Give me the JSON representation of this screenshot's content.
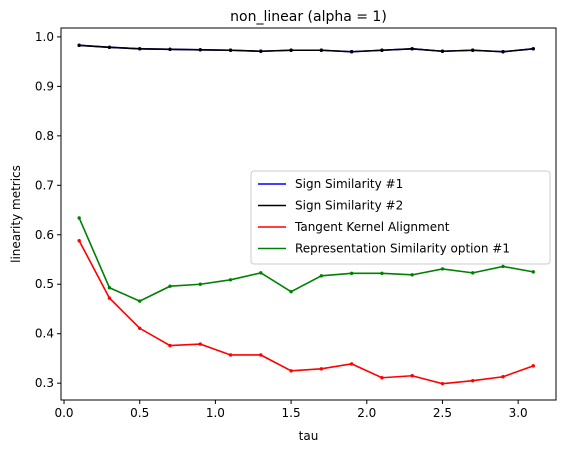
{
  "chart_data": {
    "type": "line",
    "title": "non_linear (alpha = 1)",
    "xlabel": "tau",
    "ylabel": "linearity metrics",
    "xlim": [
      -0.02,
      3.25
    ],
    "ylim": [
      0.266,
      1.018
    ],
    "xticks": [
      "0.0",
      "0.5",
      "1.0",
      "1.5",
      "2.0",
      "2.5",
      "3.0"
    ],
    "yticks": [
      "0.3",
      "0.4",
      "0.5",
      "0.6",
      "0.7",
      "0.8",
      "0.9",
      "1.0"
    ],
    "grid": false,
    "legend_position": "center-right",
    "x": [
      0.1,
      0.3,
      0.5,
      0.7,
      0.9,
      1.1,
      1.3,
      1.5,
      1.7,
      1.9,
      2.1,
      2.3,
      2.5,
      2.7,
      2.9,
      3.1
    ],
    "series": [
      {
        "name": "Sign Similarity #1",
        "color": "#0000ff",
        "values": [
          0.983,
          0.979,
          0.976,
          0.975,
          0.974,
          0.973,
          0.971,
          0.973,
          0.973,
          0.97,
          0.973,
          0.976,
          0.971,
          0.973,
          0.97,
          0.976
        ]
      },
      {
        "name": "Sign Similarity #2",
        "color": "#000000",
        "values": [
          0.983,
          0.979,
          0.976,
          0.975,
          0.974,
          0.973,
          0.971,
          0.973,
          0.973,
          0.97,
          0.973,
          0.976,
          0.971,
          0.973,
          0.97,
          0.976
        ]
      },
      {
        "name": "Tangent Kernel Alignment",
        "color": "#ff0000",
        "values": [
          0.588,
          0.472,
          0.411,
          0.376,
          0.379,
          0.357,
          0.357,
          0.325,
          0.329,
          0.339,
          0.311,
          0.315,
          0.299,
          0.305,
          0.313,
          0.335
        ]
      },
      {
        "name": "Representation Similarity option #1",
        "color": "#008000",
        "values": [
          0.634,
          0.493,
          0.466,
          0.496,
          0.5,
          0.509,
          0.523,
          0.485,
          0.517,
          0.522,
          0.522,
          0.519,
          0.531,
          0.523,
          0.536,
          0.525
        ]
      }
    ]
  }
}
